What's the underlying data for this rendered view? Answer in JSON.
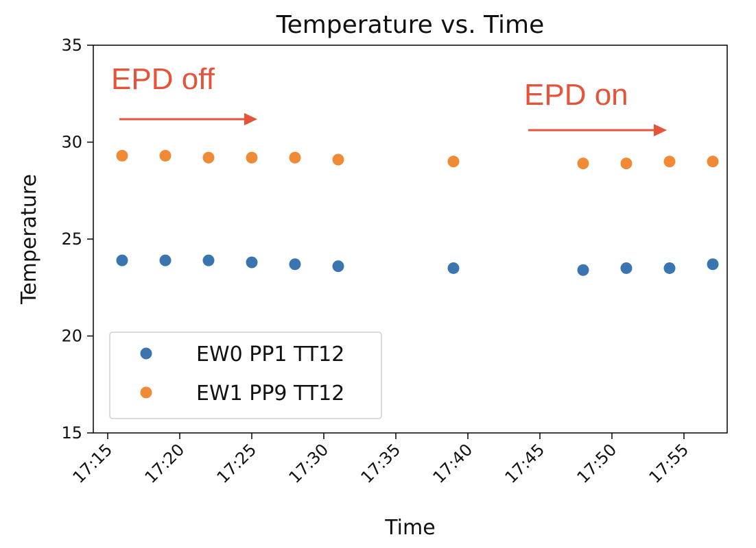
{
  "colors": {
    "series_0": "#3b75b0",
    "series_1": "#ef8a36",
    "annotation": "#e5533a"
  },
  "chart_data": {
    "type": "scatter",
    "title": "Temperature vs. Time",
    "xlabel": "Time",
    "ylabel": "Temperature",
    "x_ticks": [
      "17:15",
      "17:20",
      "17:25",
      "17:30",
      "17:35",
      "17:40",
      "17:45",
      "17:50",
      "17:55"
    ],
    "y_ticks": [
      15,
      20,
      25,
      30,
      35
    ],
    "xlim": [
      "17:14",
      "17:58"
    ],
    "ylim": [
      15,
      35
    ],
    "grid": false,
    "legend_position": "lower-left",
    "series": [
      {
        "name": "EW0 PP1 TT12",
        "x": [
          "17:16",
          "17:19",
          "17:22",
          "17:25",
          "17:28",
          "17:31",
          "17:39",
          "17:48",
          "17:51",
          "17:54",
          "17:57"
        ],
        "y": [
          23.9,
          23.9,
          23.9,
          23.8,
          23.7,
          23.6,
          23.5,
          23.4,
          23.5,
          23.5,
          23.7
        ]
      },
      {
        "name": "EW1 PP9 TT12",
        "x": [
          "17:16",
          "17:19",
          "17:22",
          "17:25",
          "17:28",
          "17:31",
          "17:39",
          "17:48",
          "17:51",
          "17:54",
          "17:57"
        ],
        "y": [
          29.3,
          29.3,
          29.2,
          29.2,
          29.2,
          29.1,
          29.0,
          28.9,
          28.9,
          29.0,
          29.0
        ]
      }
    ],
    "annotations": [
      {
        "text": "EPD off"
      },
      {
        "text": "EPD on"
      }
    ]
  }
}
